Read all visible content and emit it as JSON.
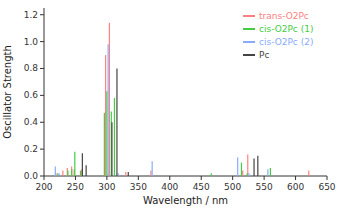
{
  "chart_data": {
    "type": "vlines",
    "xlabel": "Wavelength / nm",
    "ylabel": "Oscillator Strength",
    "xlim": [
      200,
      650
    ],
    "ylim": [
      0,
      1.25
    ],
    "xticks": [
      200,
      250,
      300,
      350,
      400,
      450,
      500,
      550,
      600,
      650
    ],
    "yticks": [
      {
        "value": 0.0,
        "label": "0.0"
      },
      0.2,
      0.4,
      0.6,
      0.8,
      {
        "value": 1.0,
        "label": "1.0"
      },
      1.2
    ],
    "legend": "upper right",
    "series": [
      {
        "name": "trans-O2Pc",
        "color": "#FF8080",
        "x": [
          219,
          230,
          237,
          244,
          248,
          260,
          298,
          304,
          330,
          370,
          516,
          524,
          621
        ],
        "values": [
          0.02,
          0.04,
          0.06,
          0.07,
          0.05,
          0.05,
          0.9,
          1.14,
          0.03,
          0.04,
          0.04,
          0.16,
          0.04
        ]
      },
      {
        "name": "cis-O2Pc (1)",
        "color": "#44CC44",
        "x": [
          222,
          238,
          244,
          249,
          258,
          296,
          300,
          307,
          312,
          466,
          514,
          523,
          560
        ],
        "values": [
          0.02,
          0.04,
          0.05,
          0.18,
          0.04,
          0.47,
          0.63,
          0.48,
          0.58,
          0.02,
          0.1,
          0.02,
          0.06
        ]
      },
      {
        "name": "cis-O2Pc (2)",
        "color": "#88AAFF",
        "x": [
          218,
          224,
          302,
          318,
          372,
          508,
          526,
          556
        ],
        "values": [
          0.07,
          0.02,
          0.98,
          0.02,
          0.11,
          0.14,
          0.02,
          0.05
        ]
      },
      {
        "name": "Pc",
        "color": "#444444",
        "x": [
          261,
          267,
          308,
          316,
          334,
          534,
          540
        ],
        "values": [
          0.17,
          0.08,
          0.4,
          0.8,
          0.03,
          0.13,
          0.15
        ]
      }
    ]
  }
}
